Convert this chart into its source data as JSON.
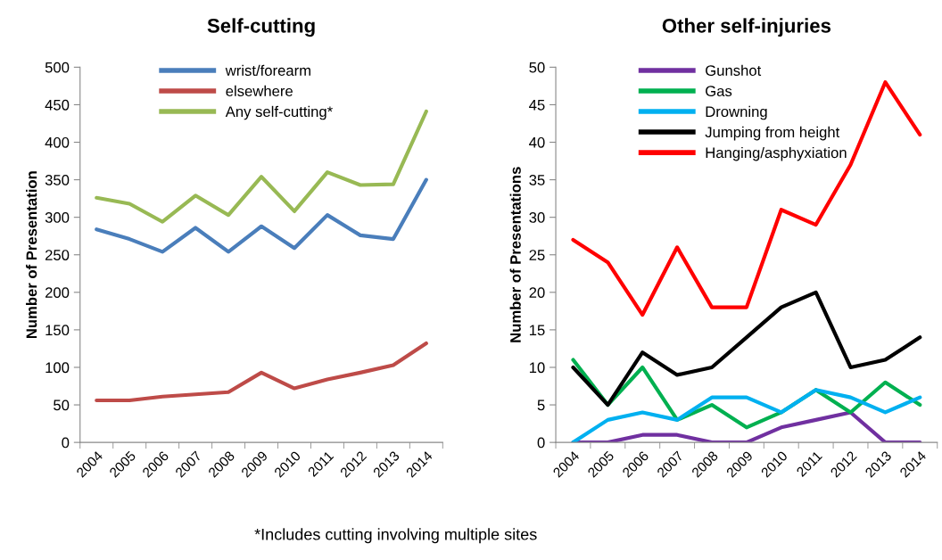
{
  "chart_data": [
    {
      "type": "line",
      "title": "Self-cutting",
      "ylabel": "Number of Presentation",
      "categories": [
        "2004",
        "2005",
        "2006",
        "2007",
        "2008",
        "2009",
        "2010",
        "2011",
        "2012",
        "2013",
        "2014"
      ],
      "series": [
        {
          "name": "wrist/forearm",
          "color": "#4a7ebb",
          "values": [
            284,
            271,
            254,
            286,
            254,
            288,
            259,
            303,
            276,
            271,
            350
          ]
        },
        {
          "name": "elsewhere",
          "color": "#be4b48",
          "values": [
            56,
            56,
            61,
            64,
            67,
            93,
            72,
            84,
            93,
            103,
            132
          ]
        },
        {
          "name": "Any self-cutting*",
          "color": "#98b954",
          "values": [
            326,
            318,
            294,
            329,
            303,
            354,
            308,
            360,
            343,
            344,
            441
          ]
        }
      ],
      "ylim": [
        0,
        500
      ],
      "yticks": [
        0,
        50,
        100,
        150,
        200,
        250,
        300,
        350,
        400,
        450,
        500
      ],
      "grid": false,
      "legend": "top left",
      "marker": "none",
      "line_style": "solid",
      "annotations": [
        "*Includes cutting involving multiple sites"
      ]
    },
    {
      "type": "line",
      "title": "Other self-injuries",
      "ylabel": "Number of Presentations",
      "categories": [
        "2004",
        "2005",
        "2006",
        "2007",
        "2008",
        "2009",
        "2010",
        "2011",
        "2012",
        "2013",
        "2014"
      ],
      "series": [
        {
          "name": "Gunshot",
          "color": "#7030a0",
          "values": [
            0,
            0,
            1,
            1,
            0,
            0,
            2,
            3,
            4,
            0,
            0
          ]
        },
        {
          "name": "Gas",
          "color": "#00b050",
          "values": [
            11,
            5,
            10,
            3,
            5,
            2,
            4,
            7,
            4,
            8,
            5
          ]
        },
        {
          "name": "Drowning",
          "color": "#00b0f0",
          "values": [
            0,
            3,
            4,
            3,
            6,
            6,
            4,
            7,
            6,
            4,
            6
          ]
        },
        {
          "name": "Jumping from height",
          "color": "#000000",
          "values": [
            10,
            5,
            12,
            9,
            10,
            14,
            18,
            20,
            10,
            11,
            14
          ]
        },
        {
          "name": "Hanging/asphyxiation",
          "color": "#ff0000",
          "values": [
            27,
            24,
            17,
            26,
            18,
            18,
            31,
            29,
            37,
            48,
            41
          ]
        }
      ],
      "ylim": [
        0,
        50
      ],
      "yticks": [
        0,
        5,
        10,
        15,
        20,
        25,
        30,
        35,
        40,
        45,
        50
      ],
      "grid": false,
      "legend": "top left",
      "marker": "none",
      "line_style": "solid"
    }
  ]
}
